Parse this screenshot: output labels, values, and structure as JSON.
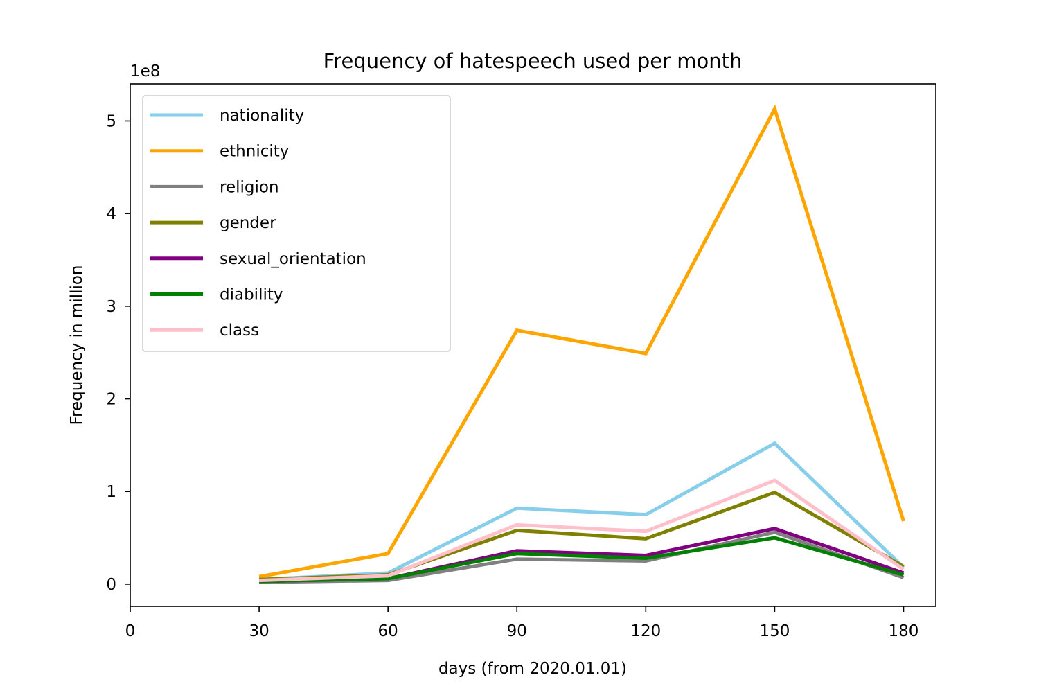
{
  "chart_data": {
    "type": "line",
    "title": "Frequency of hatespeech used per month",
    "xlabel": "days (from 2020.01.01)",
    "ylabel": "Frequency in million",
    "y_scale_label": "1e8",
    "xlim": [
      0,
      187.5
    ],
    "ylim": [
      -0.24,
      5.4
    ],
    "x_ticks": [
      0,
      30,
      60,
      90,
      120,
      150,
      180
    ],
    "y_ticks": [
      0,
      1,
      2,
      3,
      4,
      5
    ],
    "grid": false,
    "legend_position": "upper-left",
    "x": [
      30,
      60,
      90,
      120,
      150,
      180
    ],
    "series": [
      {
        "name": "nationality",
        "color": "#87CEEB",
        "values": [
          0.05,
          0.12,
          0.82,
          0.75,
          1.52,
          0.18
        ]
      },
      {
        "name": "ethnicity",
        "color": "#FFA500",
        "values": [
          0.08,
          0.33,
          2.74,
          2.49,
          5.13,
          0.68
        ]
      },
      {
        "name": "religion",
        "color": "#808080",
        "values": [
          0.02,
          0.04,
          0.27,
          0.25,
          0.56,
          0.07
        ]
      },
      {
        "name": "gender",
        "color": "#808000",
        "values": [
          0.05,
          0.1,
          0.58,
          0.49,
          0.99,
          0.19
        ]
      },
      {
        "name": "sexual_orientation",
        "color": "#800080",
        "values": [
          0.03,
          0.06,
          0.36,
          0.31,
          0.6,
          0.12
        ]
      },
      {
        "name": "diability",
        "color": "#008000",
        "values": [
          0.03,
          0.06,
          0.33,
          0.28,
          0.5,
          0.1
        ]
      },
      {
        "name": "class",
        "color": "#FFC0CB",
        "values": [
          0.04,
          0.09,
          0.64,
          0.57,
          1.12,
          0.16
        ]
      }
    ]
  }
}
